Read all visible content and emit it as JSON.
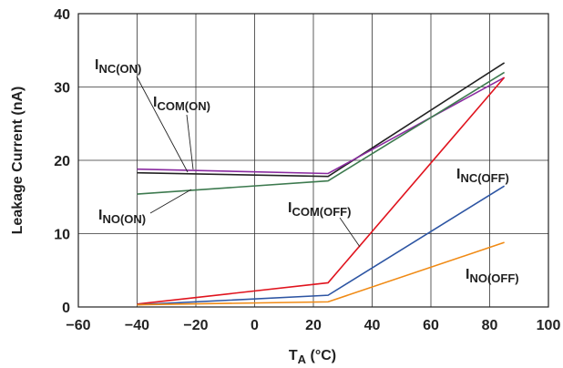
{
  "chart_data": {
    "type": "line",
    "xlabel_main": "T",
    "xlabel_sub": "A",
    "xlabel_rest": " (°C)",
    "ylabel": "Leakage Current (nA)",
    "xlim": [
      -60,
      100
    ],
    "ylim": [
      0,
      40
    ],
    "xticks": [
      -60,
      -40,
      -20,
      0,
      20,
      40,
      60,
      80,
      100
    ],
    "yticks": [
      0,
      10,
      20,
      30,
      40
    ],
    "xtick_labels": [
      "−60",
      "−40",
      "−20",
      "0",
      "20",
      "40",
      "60",
      "80",
      "100"
    ],
    "ytick_labels": [
      "0",
      "10",
      "20",
      "30",
      "40"
    ],
    "grid": true,
    "legend": "none (inline callout labels)",
    "series": [
      {
        "name_main": "I",
        "name_sub": "NC(ON)",
        "color": "#222222",
        "x": [
          -40,
          25,
          85
        ],
        "y": [
          18.3,
          17.8,
          33.3
        ]
      },
      {
        "name_main": "I",
        "name_sub": "COM(ON)",
        "color": "#8a2aa0",
        "x": [
          -40,
          25,
          85
        ],
        "y": [
          18.8,
          18.2,
          31.3
        ]
      },
      {
        "name_main": "I",
        "name_sub": "NO(ON)",
        "color": "#3d7a4f",
        "x": [
          -40,
          25,
          85
        ],
        "y": [
          15.4,
          17.2,
          32.0
        ]
      },
      {
        "name_main": "I",
        "name_sub": "COM(OFF)",
        "color": "#e0141e",
        "x": [
          -40,
          25,
          85
        ],
        "y": [
          0.4,
          3.3,
          31.3
        ]
      },
      {
        "name_main": "I",
        "name_sub": "NC(OFF)",
        "color": "#2d55a3",
        "x": [
          -40,
          25,
          85
        ],
        "y": [
          0.3,
          1.6,
          16.5
        ]
      },
      {
        "name_main": "I",
        "name_sub": "NO(OFF)",
        "color": "#f08a14",
        "x": [
          -40,
          25,
          85
        ],
        "y": [
          0.3,
          0.7,
          8.8
        ]
      }
    ]
  }
}
